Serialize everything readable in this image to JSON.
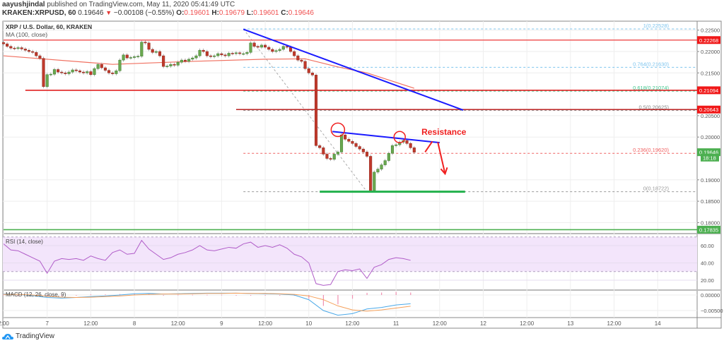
{
  "header": {
    "author": "aayushjindal",
    "published_text": "published on TradingView.com, May 11, 2020 05:41:49 UTC",
    "symbol": "KRAKEN:XRPUSD, 60",
    "last": "0.19646",
    "change": "−0.00108 (−0.55%)",
    "o_label": "O:",
    "o": "0.19601",
    "h_label": "H:",
    "h": "0.19679",
    "l_label": "L:",
    "l": "0.19601",
    "c_label": "C:",
    "c": "0.19646"
  },
  "footer": {
    "brand": "TradingView"
  },
  "chart_data": {
    "type": "candlestick",
    "title": "XRP / U.S. Dollar, 60, KRAKEN",
    "ma_label": "MA (100, close)",
    "interval_minutes": 60,
    "start": "2020-05-06 12:00",
    "closes": [
      0.2218,
      0.2212,
      0.2208,
      0.2207,
      0.2209,
      0.2206,
      0.2203,
      0.22,
      0.2198,
      0.219,
      0.2184,
      0.2118,
      0.2146,
      0.2147,
      0.2158,
      0.2152,
      0.215,
      0.2148,
      0.2152,
      0.2157,
      0.2155,
      0.2152,
      0.215,
      0.2153,
      0.2146,
      0.216,
      0.217,
      0.2162,
      0.2156,
      0.215,
      0.2148,
      0.2155,
      0.218,
      0.2192,
      0.2185,
      0.2186,
      0.2188,
      0.2189,
      0.2222,
      0.222,
      0.2205,
      0.2198,
      0.22,
      0.219,
      0.2165,
      0.2166,
      0.217,
      0.2168,
      0.2175,
      0.218,
      0.2177,
      0.2182,
      0.2185,
      0.219,
      0.2203,
      0.22,
      0.219,
      0.2188,
      0.219,
      0.2195,
      0.2192,
      0.219,
      0.2196,
      0.2195,
      0.2197,
      0.2195,
      0.2195,
      0.2198,
      0.222,
      0.2212,
      0.221,
      0.2215,
      0.221,
      0.2205,
      0.22,
      0.2202,
      0.2205,
      0.2212,
      0.221,
      0.22,
      0.219,
      0.218,
      0.2177,
      0.216,
      0.215,
      0.2145,
      0.198,
      0.1975,
      0.196,
      0.195,
      0.1948,
      0.196,
      0.1965,
      0.2005,
      0.1995,
      0.199,
      0.1985,
      0.1978,
      0.1972,
      0.1965,
      0.1955,
      0.1875,
      0.1918,
      0.1925,
      0.1935,
      0.1945,
      0.1962,
      0.198,
      0.1982,
      0.1988,
      0.1992,
      0.1985,
      0.1975,
      0.19646
    ],
    "ma100": [
      [
        "2020-05-06 12:00",
        0.219
      ],
      [
        "2020-05-07 18:00",
        0.217
      ],
      [
        "2020-05-08 16:00",
        0.2177
      ],
      [
        "2020-05-09 12:00",
        0.2182
      ],
      [
        "2020-05-09 23:00",
        0.2183
      ],
      [
        "2020-05-10 08:00",
        0.2164
      ],
      [
        "2020-05-10 16:00",
        0.215
      ],
      [
        "2020-05-11 05:00",
        0.2114
      ]
    ],
    "y_ticks": [
      "0.22500",
      "0.22000",
      "0.21500",
      "0.20500",
      "0.20000",
      "0.19000",
      "0.18500",
      "0.18000"
    ],
    "x_ticks": [
      [
        "2020-05-06 12:00",
        "2:00"
      ],
      [
        "2020-05-07 00:00",
        "7"
      ],
      [
        "2020-05-07 12:00",
        "12:00"
      ],
      [
        "2020-05-08 00:00",
        "8"
      ],
      [
        "2020-05-08 12:00",
        "12:00"
      ],
      [
        "2020-05-09 00:00",
        "9"
      ],
      [
        "2020-05-09 12:00",
        "12:00"
      ],
      [
        "2020-05-10 00:00",
        "10"
      ],
      [
        "2020-05-10 12:00",
        "12:00"
      ],
      [
        "2020-05-11 00:00",
        "11"
      ],
      [
        "2020-05-11 12:00",
        "12:00"
      ],
      [
        "2020-05-12 00:00",
        "12"
      ],
      [
        "2020-05-12 12:00",
        "12:00"
      ],
      [
        "2020-05-13 00:00",
        "13"
      ],
      [
        "2020-05-13 12:00",
        "12:00"
      ],
      [
        "2020-05-14 00:00",
        "14"
      ]
    ],
    "price_labels": [
      {
        "value": 0.22268,
        "text": "0.22268",
        "color": "#f01818"
      },
      {
        "value": 0.21094,
        "text": "0.21094",
        "color": "#f01818"
      },
      {
        "value": 0.20643,
        "text": "0.20643",
        "color": "#f01818"
      },
      {
        "value": 0.19646,
        "text": "0.19646",
        "color": "#4caf50"
      },
      {
        "value": 0.1952,
        "text": "18:18",
        "color": "#4caf50"
      },
      {
        "value": 0.17835,
        "text": "0.17835",
        "color": "#4caf50"
      }
    ],
    "horizontal_levels": [
      {
        "value": 0.22268,
        "from": "2020-05-06 12:00",
        "color": "#f05a5a"
      },
      {
        "value": 0.21094,
        "from": "2020-05-06 18:00",
        "color": "#e02020"
      },
      {
        "value": 0.20643,
        "from": "2020-05-09 04:00",
        "color": "#c03030"
      },
      {
        "value": 0.17835,
        "from": "2020-05-06 12:00",
        "color": "#4caf50"
      }
    ],
    "fibonacci": {
      "from": [
        "2020-05-09 06:00",
        0.22528
      ],
      "to": [
        "2020-05-10 16:00",
        0.18722
      ],
      "levels": [
        {
          "text": "1(0.22528)",
          "value": 0.22528,
          "color": "#7cc4ee"
        },
        {
          "text": "0.764(0.21630)",
          "value": 0.2163,
          "color": "#7cc4ee"
        },
        {
          "text": "0.618(0.21074)",
          "value": 0.21074,
          "color": "#3cc48a"
        },
        {
          "text": "0.5(0.20625)",
          "value": 0.20625,
          "color": "#888888"
        },
        {
          "text": "0.236(0.19620)",
          "value": 0.1962,
          "color": "#f06060"
        },
        {
          "text": "0(0.18722)",
          "value": 0.18722,
          "color": "#999999"
        }
      ]
    },
    "trendlines": [
      {
        "from": [
          "2020-05-09 06:00",
          0.2252
        ],
        "to": [
          "2020-05-11 18:30",
          0.2063
        ],
        "color": "#1a1aff"
      },
      {
        "from": [
          "2020-05-10 06:30",
          0.2013
        ],
        "to": [
          "2020-05-11 12:00",
          0.1987
        ],
        "color": "#1a1aff"
      }
    ],
    "support_line": {
      "from": [
        "2020-05-10 03:00",
        0.18722
      ],
      "to": [
        "2020-05-11 19:00",
        0.18722
      ],
      "color": "#22b14c"
    },
    "circles": [
      [
        "2020-05-10 08:00",
        0.2017
      ],
      [
        "2020-05-11 01:00",
        0.2
      ]
    ],
    "annotation": {
      "text": "Resistance",
      "at": [
        "2020-05-11 07:00",
        0.2005
      ],
      "color": "#f02020"
    },
    "arrows": [
      {
        "from": [
          "2020-05-11 10:00",
          0.199
        ],
        "to": [
          "2020-05-11 08:00",
          0.1965
        ]
      },
      {
        "from": [
          "2020-05-11 11:30",
          0.1988
        ],
        "to": [
          "2020-05-11 13:30",
          0.1914
        ]
      }
    ],
    "colors": {
      "up": "#6aa84f",
      "down": "#c0392b",
      "ma": "#f07060",
      "rsi": "#b05cc8",
      "macd": "#4aa8e8",
      "signal": "#f5a05a",
      "hist_pos": "#f090b0",
      "hist_neg": "#f090b0"
    },
    "rsi": {
      "label": "RSI (14, close)",
      "step_hours": 2,
      "values": [
        62,
        55,
        54,
        50,
        46,
        42,
        28,
        42,
        45,
        44,
        45,
        43,
        48,
        45,
        43,
        52,
        55,
        50,
        51,
        66,
        56,
        50,
        44,
        46,
        50,
        52,
        55,
        60,
        55,
        54,
        56,
        58,
        57,
        62,
        64,
        58,
        60,
        58,
        61,
        57,
        50,
        47,
        40,
        16,
        14,
        15,
        30,
        32,
        31,
        33,
        22,
        35,
        38,
        44,
        46,
        45,
        43
      ],
      "band": [
        30,
        70
      ],
      "y_ticks": [
        "60.00",
        "40.00",
        "20.00"
      ]
    },
    "macd": {
      "label": "MACD (12, 26, close, 9)",
      "step_hours": 4,
      "macd": [
        0.0003,
        0.0002,
        -0.0002,
        -0.0008,
        -0.001,
        -0.0008,
        -0.0005,
        -0.0003,
        0,
        0.0004,
        0.0005,
        0.0003,
        0.0004,
        0.0005,
        0.0006,
        0.0006,
        0.0006,
        0.0005,
        0.0004,
        0.0003,
        0.0,
        -0.0015,
        -0.005,
        -0.0065,
        -0.006,
        -0.0045,
        -0.004,
        -0.0032,
        -0.0028
      ],
      "signal": [
        0.0002,
        0.0002,
        0.0,
        -0.0004,
        -0.0007,
        -0.0008,
        -0.0007,
        -0.0005,
        -0.0003,
        0,
        0.0002,
        0.0003,
        0.0003,
        0.0004,
        0.0005,
        0.0005,
        0.0006,
        0.0005,
        0.0005,
        0.0004,
        0.0002,
        -0.0003,
        -0.0015,
        -0.0035,
        -0.0048,
        -0.0052,
        -0.0048,
        -0.0042,
        -0.0036
      ],
      "y_ticks": [
        "0.00000",
        "−0.00500"
      ]
    }
  }
}
